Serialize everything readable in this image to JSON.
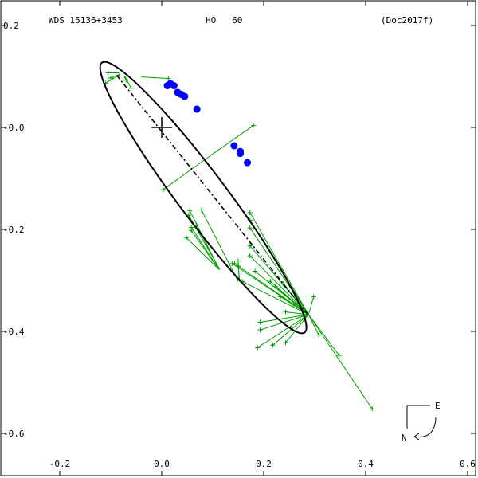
{
  "header": {
    "designation": "WDS 15136+3453",
    "discoverer": "HO   60",
    "reference": "(Doc2017f)"
  },
  "compass": {
    "east": "E",
    "north": "N"
  },
  "chart_data": {
    "type": "scatter",
    "title": "",
    "xlabel": "",
    "ylabel": "",
    "xlim": [
      -0.25,
      0.6
    ],
    "ylim": [
      -0.65,
      0.2
    ],
    "xticks": [
      -0.2,
      0.0,
      0.2,
      0.4,
      0.6
    ],
    "yticks": [
      0.2,
      0.0,
      -0.2,
      -0.4,
      -0.6
    ],
    "xtick_labels": [
      "-0.2",
      "0.0",
      "0.2",
      "0.4",
      "0.6"
    ],
    "ytick_labels": [
      "0.2",
      "-0.0",
      "-0.2",
      "-0.4",
      "-0.6"
    ],
    "grid": false,
    "primary": [
      0,
      0
    ],
    "orbit": {
      "center": [
        0.0815,
        -0.1375
      ],
      "semi_major": 0.331,
      "semi_minor": 0.0472,
      "rotation_deg": 53.1
    },
    "line_of_nodes": [
      [
        -0.088,
        0.102
      ],
      [
        0.286,
        -0.366
      ]
    ],
    "colors": {
      "orbit": "#000000",
      "residual": "#00a000",
      "accurate": "#0000ff"
    },
    "accurate_obs": [
      [
        0.011,
        0.082
      ],
      [
        0.017,
        0.086
      ],
      [
        0.024,
        0.082
      ],
      [
        0.031,
        0.069
      ],
      [
        0.038,
        0.065
      ],
      [
        0.045,
        0.061
      ],
      [
        0.069,
        0.036
      ],
      [
        0.142,
        -0.036
      ],
      [
        0.154,
        -0.047
      ],
      [
        0.154,
        -0.051
      ],
      [
        0.168,
        -0.069
      ]
    ],
    "residual_obs": [
      [
        [
          -0.105,
          0.107
        ],
        [
          -0.083,
          0.107
        ]
      ],
      [
        [
          -0.1,
          0.097
        ],
        [
          -0.082,
          0.105
        ]
      ],
      [
        [
          -0.11,
          0.087
        ],
        [
          -0.081,
          0.104
        ]
      ],
      [
        [
          -0.07,
          0.093
        ],
        [
          -0.074,
          0.101
        ]
      ],
      [
        [
          -0.06,
          0.077
        ],
        [
          -0.072,
          0.1
        ]
      ],
      [
        [
          0.013,
          0.096
        ],
        [
          -0.04,
          0.099
        ]
      ],
      [
        [
          0.18,
          0.004
        ],
        [
          0.1,
          -0.052
        ]
      ],
      [
        [
          0.003,
          -0.122
        ],
        [
          0.1,
          -0.052
        ]
      ],
      [
        [
          0.058,
          -0.202
        ],
        [
          0.111,
          -0.277
        ]
      ],
      [
        [
          0.048,
          -0.216
        ],
        [
          0.111,
          -0.277
        ]
      ],
      [
        [
          0.058,
          -0.196
        ],
        [
          0.112,
          -0.278
        ]
      ],
      [
        [
          0.068,
          -0.191
        ],
        [
          0.113,
          -0.278
        ]
      ],
      [
        [
          0.055,
          -0.163
        ],
        [
          0.113,
          -0.279
        ]
      ],
      [
        [
          0.053,
          -0.172
        ],
        [
          0.114,
          -0.279
        ]
      ],
      [
        [
          0.078,
          -0.162
        ],
        [
          0.15,
          -0.302
        ]
      ],
      [
        [
          0.15,
          -0.262
        ],
        [
          0.152,
          -0.302
        ]
      ],
      [
        [
          0.15,
          -0.272
        ],
        [
          0.153,
          -0.302
        ]
      ],
      [
        [
          0.173,
          -0.167
        ],
        [
          0.288,
          -0.367
        ]
      ],
      [
        [
          0.173,
          -0.182
        ],
        [
          0.288,
          -0.367
        ]
      ],
      [
        [
          0.173,
          -0.197
        ],
        [
          0.288,
          -0.367
        ]
      ],
      [
        [
          0.173,
          -0.232
        ],
        [
          0.288,
          -0.367
        ]
      ],
      [
        [
          0.173,
          -0.252
        ],
        [
          0.288,
          -0.367
        ]
      ],
      [
        [
          0.183,
          -0.282
        ],
        [
          0.288,
          -0.367
        ]
      ],
      [
        [
          0.213,
          -0.302
        ],
        [
          0.288,
          -0.367
        ]
      ],
      [
        [
          0.223,
          -0.312
        ],
        [
          0.288,
          -0.367
        ]
      ],
      [
        [
          0.233,
          -0.332
        ],
        [
          0.288,
          -0.367
        ]
      ],
      [
        [
          0.238,
          -0.307
        ],
        [
          0.288,
          -0.367
        ]
      ],
      [
        [
          0.243,
          -0.362
        ],
        [
          0.288,
          -0.367
        ]
      ],
      [
        [
          0.258,
          -0.347
        ],
        [
          0.288,
          -0.367
        ]
      ],
      [
        [
          0.298,
          -0.332
        ],
        [
          0.288,
          -0.367
        ]
      ],
      [
        [
          0.243,
          -0.422
        ],
        [
          0.288,
          -0.367
        ]
      ],
      [
        [
          0.218,
          -0.427
        ],
        [
          0.288,
          -0.367
        ]
      ],
      [
        [
          0.308,
          -0.407
        ],
        [
          0.288,
          -0.367
        ]
      ],
      [
        [
          0.348,
          -0.447
        ],
        [
          0.288,
          -0.367
        ]
      ],
      [
        [
          0.413,
          -0.552
        ],
        [
          0.288,
          -0.367
        ]
      ],
      [
        [
          0.188,
          -0.432
        ],
        [
          0.288,
          -0.367
        ]
      ],
      [
        [
          0.193,
          -0.397
        ],
        [
          0.288,
          -0.367
        ]
      ],
      [
        [
          0.193,
          -0.382
        ],
        [
          0.288,
          -0.367
        ]
      ],
      [
        [
          0.158,
          -0.302
        ],
        [
          0.288,
          -0.367
        ]
      ],
      [
        [
          0.138,
          -0.267
        ],
        [
          0.288,
          -0.367
        ]
      ],
      [
        [
          0.143,
          -0.267
        ],
        [
          0.288,
          -0.367
        ]
      ]
    ]
  }
}
